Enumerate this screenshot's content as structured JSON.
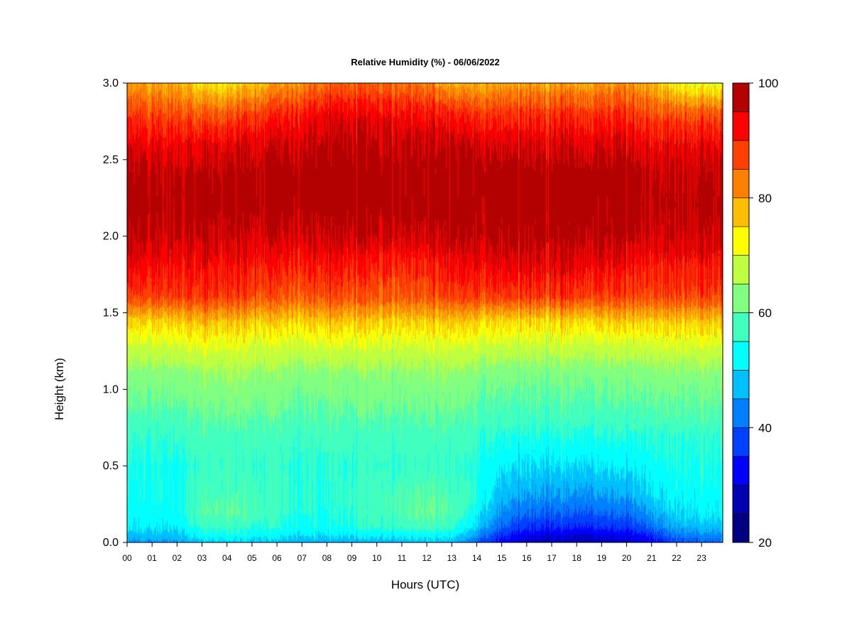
{
  "chart_data": {
    "type": "heatmap",
    "title": "Relative Humidity (%) - 06/06/2022",
    "xlabel": "Hours (UTC)",
    "ylabel": "Height (km)",
    "x_tick_labels": [
      "00",
      "01",
      "02",
      "03",
      "04",
      "05",
      "06",
      "07",
      "08",
      "09",
      "10",
      "11",
      "12",
      "13",
      "14",
      "15",
      "16",
      "17",
      "18",
      "19",
      "20",
      "21",
      "22",
      "23"
    ],
    "y_ticks": [
      0.0,
      0.5,
      1.0,
      1.5,
      2.0,
      2.5,
      3.0
    ],
    "y_tick_labels": [
      "0.0",
      "0.5",
      "1.0",
      "1.5",
      "2.0",
      "2.5",
      "3.0"
    ],
    "xlim": [
      0,
      23.85
    ],
    "ylim": [
      0,
      3.0
    ],
    "zlim": [
      20,
      100
    ],
    "colorbar": {
      "levels": [
        20,
        25,
        30,
        35,
        40,
        45,
        50,
        55,
        60,
        65,
        70,
        75,
        80,
        85,
        90,
        95,
        100
      ],
      "tick_values": [
        20,
        40,
        60,
        80,
        100
      ],
      "tick_labels": [
        "20",
        "40",
        "60",
        "80",
        "100"
      ],
      "colors": [
        "#000080",
        "#0000b3",
        "#0000ff",
        "#0040ff",
        "#0080ff",
        "#00bfff",
        "#00ffff",
        "#40ffbf",
        "#80ff80",
        "#bfff40",
        "#ffff00",
        "#ffbf00",
        "#ff8000",
        "#ff4000",
        "#ff0000",
        "#b30000",
        "#800000"
      ]
    },
    "hours": [
      0,
      2,
      3,
      4,
      6,
      8,
      10,
      12,
      13,
      14,
      15,
      16,
      18,
      20,
      21,
      22,
      23.85
    ],
    "heights": [
      0.0,
      0.05,
      0.1,
      0.2,
      0.3,
      0.5,
      0.7,
      0.9,
      1.1,
      1.3,
      1.45,
      1.6,
      1.8,
      2.0,
      2.2,
      2.4,
      2.6,
      2.8,
      3.0
    ],
    "values": [
      [
        44,
        45,
        48,
        49,
        48,
        46,
        47,
        48,
        47,
        40,
        32,
        28,
        27,
        28,
        32,
        38,
        40
      ],
      [
        48,
        48,
        53,
        54,
        52,
        50,
        52,
        53,
        52,
        45,
        36,
        32,
        30,
        32,
        36,
        42,
        44
      ],
      [
        51,
        51,
        56,
        57,
        55,
        53,
        56,
        58,
        56,
        49,
        40,
        36,
        35,
        36,
        41,
        46,
        48
      ],
      [
        53,
        53,
        59,
        60,
        57,
        54,
        58,
        61,
        59,
        53,
        44,
        41,
        40,
        41,
        46,
        50,
        52
      ],
      [
        54,
        54,
        58,
        59,
        57,
        55,
        58,
        60,
        58,
        55,
        47,
        45,
        44,
        45,
        50,
        52,
        53
      ],
      [
        54,
        54,
        56,
        57,
        56,
        55,
        56,
        57,
        56,
        55,
        51,
        50,
        50,
        51,
        53,
        54,
        54
      ],
      [
        56,
        56,
        58,
        58,
        58,
        57,
        58,
        58,
        58,
        57,
        55,
        55,
        55,
        55,
        56,
        56,
        56
      ],
      [
        60,
        60,
        61,
        62,
        61,
        60,
        61,
        61,
        61,
        60,
        59,
        59,
        59,
        59,
        60,
        60,
        60
      ],
      [
        63,
        63,
        64,
        65,
        64,
        63,
        64,
        64,
        64,
        63,
        62,
        62,
        62,
        62,
        63,
        63,
        63
      ],
      [
        69,
        70,
        71,
        71,
        70,
        70,
        70,
        70,
        70,
        70,
        69,
        69,
        69,
        69,
        70,
        70,
        70
      ],
      [
        76,
        77,
        78,
        78,
        77,
        77,
        77,
        77,
        77,
        77,
        76,
        76,
        76,
        77,
        77,
        77,
        77
      ],
      [
        87,
        88,
        88,
        88,
        86,
        86,
        86,
        86,
        87,
        88,
        88,
        88,
        88,
        87,
        87,
        87,
        87
      ],
      [
        93,
        92,
        92,
        92,
        91,
        91,
        90,
        90,
        92,
        93,
        94,
        94,
        94,
        92,
        91,
        91,
        91
      ],
      [
        97,
        96,
        96,
        96,
        96,
        96,
        96,
        96,
        97,
        97,
        98,
        98,
        98,
        97,
        96,
        96,
        96
      ],
      [
        99,
        98,
        98,
        99,
        99,
        99,
        99,
        99,
        99,
        99,
        99,
        99,
        99,
        99,
        98,
        98,
        98
      ],
      [
        98,
        97,
        97,
        98,
        99,
        99,
        99,
        99,
        99,
        99,
        99,
        99,
        99,
        99,
        97,
        97,
        97
      ],
      [
        94,
        93,
        93,
        94,
        96,
        97,
        97,
        97,
        96,
        96,
        95,
        95,
        95,
        95,
        93,
        93,
        93
      ],
      [
        88,
        87,
        85,
        86,
        90,
        93,
        93,
        92,
        90,
        89,
        89,
        89,
        89,
        89,
        87,
        86,
        86
      ],
      [
        80,
        79,
        74,
        74,
        80,
        84,
        85,
        83,
        78,
        79,
        80,
        80,
        80,
        81,
        79,
        72,
        70
      ]
    ]
  }
}
